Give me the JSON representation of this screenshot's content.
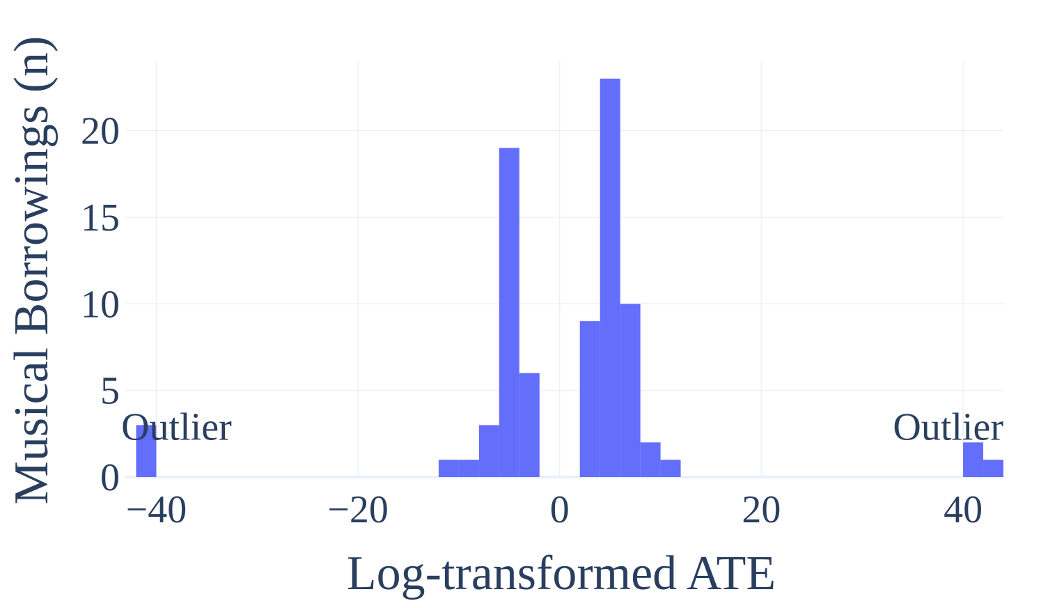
{
  "chart_data": {
    "type": "bar",
    "xlabel": "Log-transformed ATE",
    "ylabel": "Musical Borrowings (n)",
    "xlim": [
      -43,
      44
    ],
    "ylim": [
      0,
      24
    ],
    "xticks": [
      -40,
      -20,
      0,
      20,
      40
    ],
    "xtick_labels": [
      "−40",
      "−20",
      "0",
      "20",
      "40"
    ],
    "yticks": [
      0,
      5,
      10,
      15,
      20
    ],
    "ytick_labels": [
      "0",
      "5",
      "10",
      "15",
      "20"
    ],
    "grid": true,
    "bin_width": 2,
    "bins": [
      {
        "x0": -42,
        "x1": -40,
        "count": 3
      },
      {
        "x0": -12,
        "x1": -10,
        "count": 1
      },
      {
        "x0": -10,
        "x1": -8,
        "count": 1
      },
      {
        "x0": -8,
        "x1": -6,
        "count": 3
      },
      {
        "x0": -6,
        "x1": -4,
        "count": 19
      },
      {
        "x0": -4,
        "x1": -2,
        "count": 6
      },
      {
        "x0": 2,
        "x1": 4,
        "count": 9
      },
      {
        "x0": 4,
        "x1": 6,
        "count": 23
      },
      {
        "x0": 6,
        "x1": 8,
        "count": 10
      },
      {
        "x0": 8,
        "x1": 10,
        "count": 2
      },
      {
        "x0": 10,
        "x1": 12,
        "count": 1
      },
      {
        "x0": 40,
        "x1": 42,
        "count": 2
      },
      {
        "x0": 42,
        "x1": 44,
        "count": 1
      }
    ],
    "bar_color": "#636efa",
    "annotations": [
      {
        "text": "Outlier",
        "x": -38,
        "y": 3,
        "anchor": "middle"
      },
      {
        "text": "Outlier",
        "x": 44,
        "y": 3,
        "anchor": "end"
      }
    ]
  }
}
